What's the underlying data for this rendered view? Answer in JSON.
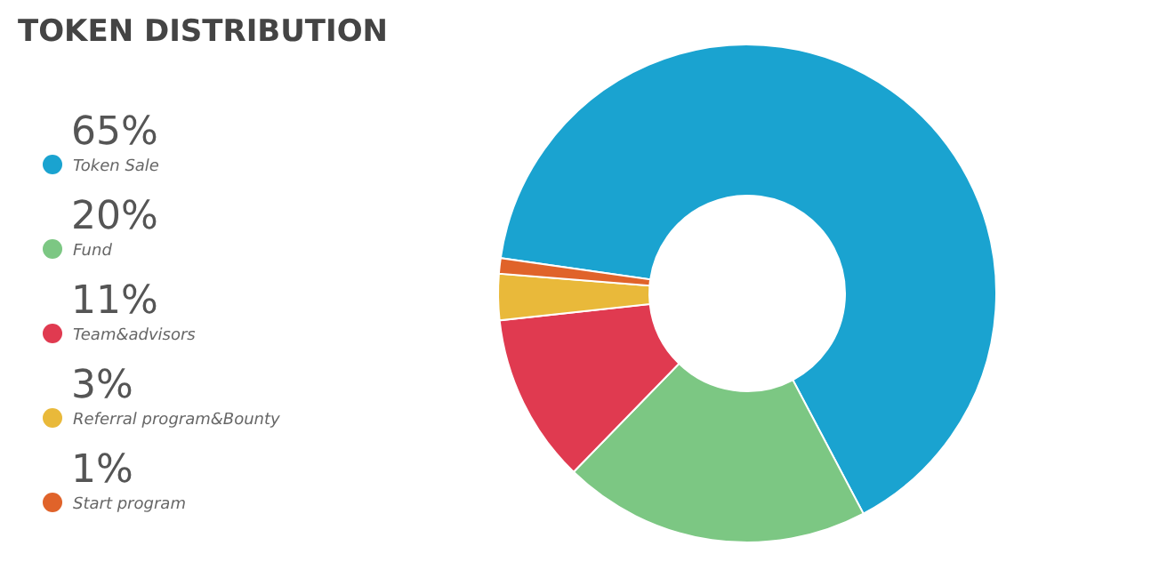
{
  "chart_data": {
    "type": "donut",
    "title": "TOKEN DISTRIBUTION",
    "categories": [
      "Token Sale",
      "Fund",
      "Team&advisors",
      "Referral program&Bounty",
      "Start program"
    ],
    "values": [
      65,
      20,
      11,
      3,
      1
    ],
    "value_labels": [
      "65%",
      "20%",
      "11%",
      "3%",
      "1%"
    ],
    "colors": [
      "#1aa3d0",
      "#7cc783",
      "#e03a50",
      "#e9b93a",
      "#e0632a"
    ],
    "legend": "left"
  }
}
